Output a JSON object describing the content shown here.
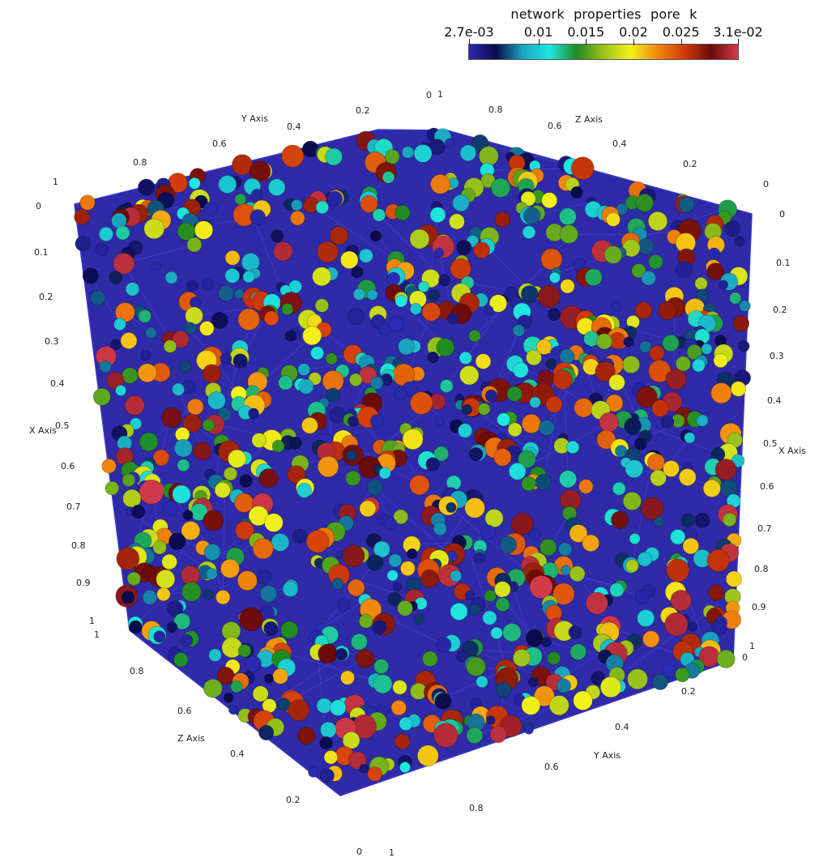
{
  "legend": {
    "title": "network  properties  pore  k",
    "min_label": "2.7e-03",
    "max_label": "3.1e-02",
    "ticks": [
      "2.7e-03",
      "0.01",
      "0.015",
      "0.02",
      "0.025",
      "3.1e-02"
    ],
    "tick_values": [
      0.0027,
      0.01,
      0.015,
      0.02,
      0.025,
      0.031
    ],
    "range": [
      0.0027,
      0.031
    ],
    "colormap": [
      "#2b2bb4",
      "#0a0a4a",
      "#1aa6c0",
      "#1fe8e0",
      "#1f8a20",
      "#9cc21a",
      "#f2f21a",
      "#f28a0a",
      "#d23a0a",
      "#6a0a0a",
      "#d23a4a"
    ]
  },
  "axes": {
    "x_title": "X Axis",
    "y_title": "Y Axis",
    "z_title": "Z Axis",
    "left_x_ticks": [
      "0",
      "0.1",
      "0.2",
      "0.3",
      "0.4",
      "0.5",
      "0.6",
      "0.7",
      "0.8",
      "0.9",
      "1"
    ],
    "right_x_ticks": [
      "0",
      "0.1",
      "0.2",
      "0.3",
      "0.4",
      "0.5",
      "0.6",
      "0.7",
      "0.8",
      "0.9",
      "1"
    ],
    "top_y_ticks": [
      "1",
      "0.8",
      "0.6",
      "0.4",
      "0.2",
      "0"
    ],
    "top_z_ticks": [
      "1",
      "0.8",
      "0.6",
      "0.4",
      "0.2",
      "0"
    ],
    "bottom_z_ticks": [
      "1",
      "0.8",
      "0.6",
      "0.4",
      "0.2",
      "0"
    ],
    "bottom_y_ticks": [
      "0",
      "0.2",
      "0.4",
      "0.6",
      "0.8",
      "1"
    ]
  },
  "scene": {
    "edge_color": "#3a36c8",
    "background": "#ffffff"
  }
}
